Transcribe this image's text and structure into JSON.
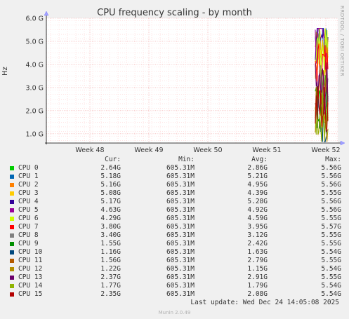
{
  "chart_data": {
    "type": "line",
    "title": "CPU frequency scaling - by month",
    "ylabel": "Hz",
    "y_ticks": [
      "1.0 G",
      "2.0 G",
      "3.0 G",
      "4.0 G",
      "5.0 G",
      "6.0 G"
    ],
    "y_tick_values": [
      1.0,
      2.0,
      3.0,
      4.0,
      5.0,
      6.0
    ],
    "ylim": [
      0.6,
      6.0
    ],
    "x_ticks": [
      "Week 48",
      "Week 49",
      "Week 50",
      "Week 51",
      "Week 52"
    ],
    "grid": true,
    "series": [
      {
        "name": "CPU 0",
        "color": "#00cc00",
        "cur": "2.64G",
        "min": "605.31M",
        "avg": "2.86G",
        "max": "5.56G"
      },
      {
        "name": "CPU 1",
        "color": "#0066b3",
        "cur": "5.18G",
        "min": "605.31M",
        "avg": "5.21G",
        "max": "5.56G"
      },
      {
        "name": "CPU 2",
        "color": "#ff8000",
        "cur": "5.16G",
        "min": "605.31M",
        "avg": "4.95G",
        "max": "5.56G"
      },
      {
        "name": "CPU 3",
        "color": "#ffcc00",
        "cur": "5.08G",
        "min": "605.31M",
        "avg": "4.39G",
        "max": "5.55G"
      },
      {
        "name": "CPU 4",
        "color": "#330099",
        "cur": "5.17G",
        "min": "605.31M",
        "avg": "5.28G",
        "max": "5.56G"
      },
      {
        "name": "CPU 5",
        "color": "#990099",
        "cur": "4.63G",
        "min": "605.31M",
        "avg": "4.92G",
        "max": "5.56G"
      },
      {
        "name": "CPU 6",
        "color": "#ccff00",
        "cur": "4.29G",
        "min": "605.31M",
        "avg": "4.59G",
        "max": "5.55G"
      },
      {
        "name": "CPU 7",
        "color": "#ff0000",
        "cur": "3.80G",
        "min": "605.31M",
        "avg": "3.95G",
        "max": "5.57G"
      },
      {
        "name": "CPU 8",
        "color": "#808080",
        "cur": "3.40G",
        "min": "605.31M",
        "avg": "3.12G",
        "max": "5.55G"
      },
      {
        "name": "CPU 9",
        "color": "#008f00",
        "cur": "1.55G",
        "min": "605.31M",
        "avg": "2.42G",
        "max": "5.55G"
      },
      {
        "name": "CPU 10",
        "color": "#00487d",
        "cur": "1.16G",
        "min": "605.31M",
        "avg": "1.63G",
        "max": "5.54G"
      },
      {
        "name": "CPU 11",
        "color": "#b35a00",
        "cur": "1.56G",
        "min": "605.31M",
        "avg": "2.79G",
        "max": "5.55G"
      },
      {
        "name": "CPU 12",
        "color": "#b38f00",
        "cur": "1.22G",
        "min": "605.31M",
        "avg": "1.15G",
        "max": "5.54G"
      },
      {
        "name": "CPU 13",
        "color": "#6b006b",
        "cur": "2.37G",
        "min": "605.31M",
        "avg": "2.91G",
        "max": "5.55G"
      },
      {
        "name": "CPU 14",
        "color": "#8fb300",
        "cur": "1.77G",
        "min": "605.31M",
        "avg": "1.79G",
        "max": "5.54G"
      },
      {
        "name": "CPU 15",
        "color": "#b30000",
        "cur": "2.35G",
        "min": "605.31M",
        "avg": "2.08G",
        "max": "5.54G"
      }
    ]
  },
  "legend_headers": {
    "cur": "Cur:",
    "min": "Min:",
    "avg": "Avg:",
    "max": "Max:"
  },
  "watermark": "RRDTOOL / TOBI OETIKER",
  "last_update": "Last update: Wed Dec 24 14:05:08 2025",
  "footer": "Munin 2.0.49"
}
